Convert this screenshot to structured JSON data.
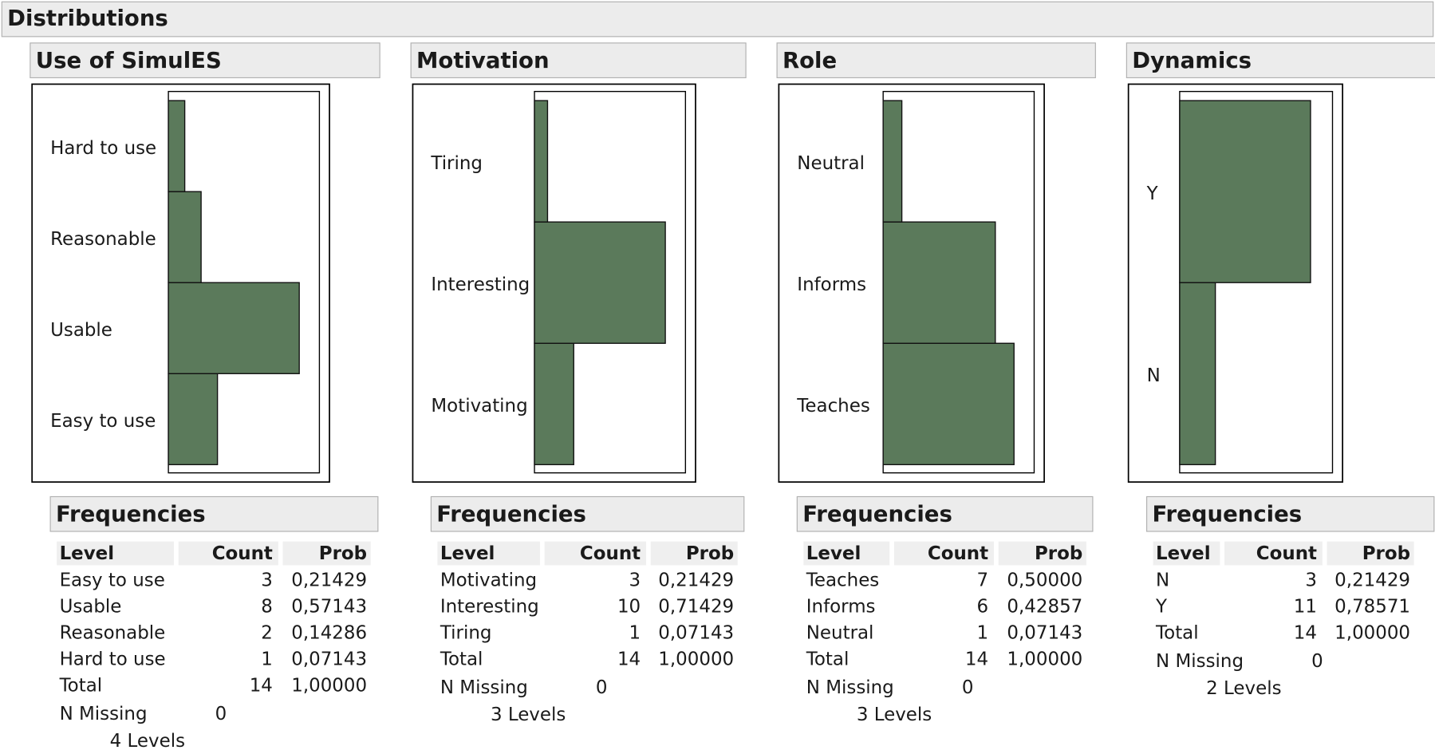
{
  "title": "Distributions",
  "chart_data": [
    {
      "type": "bar",
      "orientation": "horizontal",
      "title": "Use of SimulES",
      "categories": [
        "Easy to use",
        "Usable",
        "Reasonable",
        "Hard to use"
      ],
      "values": [
        3,
        8,
        2,
        1
      ],
      "color": "#5b7a5b",
      "frequencies": {
        "title": "Frequencies",
        "columns": [
          "Level",
          "Count",
          "Prob"
        ],
        "probs": [
          "0,21429",
          "0,57143",
          "0,14286",
          "0,07143"
        ],
        "total_label": "Total",
        "total_count": 14,
        "total_prob": "1,00000",
        "missing_label": "N Missing",
        "missing": 0,
        "levels": "4  Levels"
      }
    },
    {
      "type": "bar",
      "orientation": "horizontal",
      "title": "Motivation",
      "categories": [
        "Motivating",
        "Interesting",
        "Tiring"
      ],
      "values": [
        3,
        10,
        1
      ],
      "color": "#5b7a5b",
      "frequencies": {
        "title": "Frequencies",
        "columns": [
          "Level",
          "Count",
          "Prob"
        ],
        "probs": [
          "0,21429",
          "0,71429",
          "0,07143"
        ],
        "total_label": "Total",
        "total_count": 14,
        "total_prob": "1,00000",
        "missing_label": "N Missing",
        "missing": 0,
        "levels": "3  Levels"
      }
    },
    {
      "type": "bar",
      "orientation": "horizontal",
      "title": "Role",
      "categories": [
        "Teaches",
        "Informs",
        "Neutral"
      ],
      "values": [
        7,
        6,
        1
      ],
      "color": "#5b7a5b",
      "frequencies": {
        "title": "Frequencies",
        "columns": [
          "Level",
          "Count",
          "Prob"
        ],
        "probs": [
          "0,50000",
          "0,42857",
          "0,07143"
        ],
        "total_label": "Total",
        "total_count": 14,
        "total_prob": "1,00000",
        "missing_label": "N Missing",
        "missing": 0,
        "levels": "3  Levels"
      }
    },
    {
      "type": "bar",
      "orientation": "horizontal",
      "title": "Dynamics",
      "categories": [
        "N",
        "Y"
      ],
      "values": [
        3,
        11
      ],
      "color": "#5b7a5b",
      "frequencies": {
        "title": "Frequencies",
        "columns": [
          "Level",
          "Count",
          "Prob"
        ],
        "probs": [
          "0,21429",
          "0,78571"
        ],
        "total_label": "Total",
        "total_count": 14,
        "total_prob": "1,00000",
        "missing_label": "N Missing",
        "missing": 0,
        "levels": "2  Levels"
      }
    }
  ]
}
